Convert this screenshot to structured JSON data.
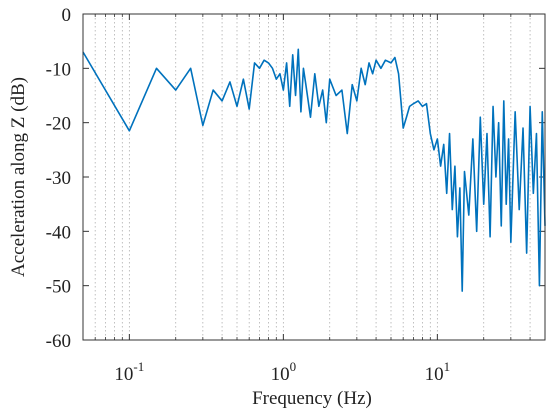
{
  "chart_data": {
    "type": "line",
    "xlabel": "Frequency (Hz)",
    "ylabel": "Acceleration along Z (dB)",
    "xscale": "log",
    "xlim": [
      0.05,
      50
    ],
    "ylim": [
      -60,
      0
    ],
    "xticks": [
      {
        "value": 0.1,
        "base": "10",
        "exponent": "-1"
      },
      {
        "value": 1,
        "base": "10",
        "exponent": "0"
      },
      {
        "value": 10,
        "base": "10",
        "exponent": "1"
      }
    ],
    "xminorticks": [
      0.06,
      0.07,
      0.08,
      0.09,
      0.2,
      0.3,
      0.4,
      0.5,
      0.6,
      0.7,
      0.8,
      0.9,
      2,
      3,
      4,
      5,
      6,
      7,
      8,
      9,
      20,
      30,
      40
    ],
    "yticks": [
      -60,
      -50,
      -40,
      -30,
      -20,
      -10,
      0
    ],
    "grid": "x",
    "series": [
      {
        "color": "#0072bd",
        "x": [
          0.05,
          0.1,
          0.15,
          0.2,
          0.25,
          0.3,
          0.35,
          0.4,
          0.45,
          0.5,
          0.55,
          0.6,
          0.65,
          0.7,
          0.75,
          0.8,
          0.85,
          0.9,
          0.95,
          1.0,
          1.05,
          1.1,
          1.15,
          1.2,
          1.25,
          1.3,
          1.35,
          1.4,
          1.5,
          1.6,
          1.7,
          1.8,
          1.9,
          2.0,
          2.2,
          2.4,
          2.6,
          2.8,
          3.0,
          3.2,
          3.4,
          3.6,
          3.8,
          4.0,
          4.3,
          4.6,
          5.0,
          5.3,
          5.6,
          5.8,
          6.0,
          6.3,
          6.6,
          7.0,
          7.5,
          8.0,
          8.5,
          9.0,
          9.5,
          10,
          10.5,
          11,
          11.5,
          12,
          12.5,
          13,
          13.5,
          14,
          14.5,
          15,
          16,
          17,
          18,
          19,
          20,
          21,
          22,
          23,
          24,
          25,
          26,
          27,
          28,
          29,
          30,
          32,
          34,
          36,
          38,
          40,
          42,
          44,
          46,
          48,
          50
        ],
        "values": [
          -7,
          -21.5,
          -10,
          -14,
          -10,
          -20.5,
          -14,
          -16,
          -12.5,
          -17,
          -12,
          -17.5,
          -9,
          -10,
          -8.5,
          -9,
          -10,
          -12,
          -11,
          -14,
          -9,
          -17,
          -7.5,
          -15,
          -6.5,
          -18,
          -10,
          -13,
          -19,
          -11,
          -17,
          -14,
          -20,
          -12,
          -15,
          -14,
          -22,
          -13,
          -16,
          -10,
          -13,
          -9,
          -11,
          -8.5,
          -10,
          -8.5,
          -9,
          -8,
          -11,
          -16,
          -21,
          -19,
          -17,
          -16.5,
          -16,
          -17,
          -16.5,
          -22,
          -25,
          -23,
          -28,
          -24,
          -33,
          -22,
          -36,
          -28,
          -41,
          -32,
          -51,
          -29,
          -37,
          -23,
          -40,
          -19,
          -35,
          -22,
          -41,
          -17,
          -30,
          -20,
          -39,
          -16,
          -35,
          -23,
          -42,
          -18,
          -36,
          -21,
          -44,
          -17,
          -33,
          -22,
          -50,
          -18,
          -39
        ]
      }
    ]
  }
}
